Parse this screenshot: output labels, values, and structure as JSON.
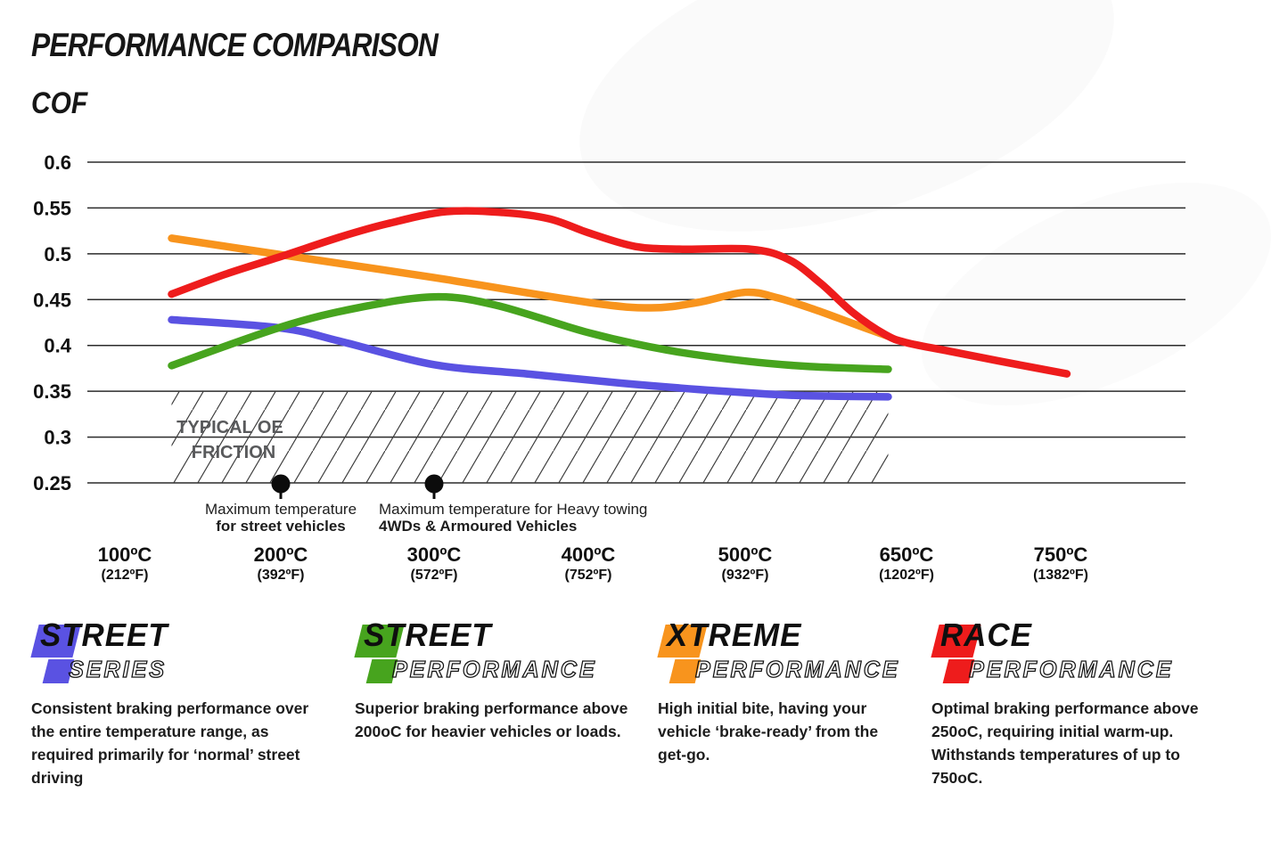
{
  "title": "PERFORMANCE COMPARISON",
  "y_axis_label": "COF",
  "chart_data": {
    "type": "line",
    "title": "PERFORMANCE COMPARISON",
    "ylabel": "COF",
    "ylim": [
      0.25,
      0.6
    ],
    "grid": true,
    "y_ticks": [
      "0.6",
      "0.55",
      "0.5",
      "0.45",
      "0.4",
      "0.35",
      "0.3",
      "0.25"
    ],
    "y_tick_values": [
      0.6,
      0.55,
      0.5,
      0.45,
      0.4,
      0.35,
      0.3,
      0.25
    ],
    "x_ticks": [
      {
        "t": 100,
        "c_label": "100ºC",
        "f_label": "(212ºF)"
      },
      {
        "t": 200,
        "c_label": "200ºC",
        "f_label": "(392ºF)"
      },
      {
        "t": 300,
        "c_label": "300ºC",
        "f_label": "(572ºF)"
      },
      {
        "t": 400,
        "c_label": "400ºC",
        "f_label": "(752ºF)"
      },
      {
        "t": 500,
        "c_label": "500ºC",
        "f_label": "(932ºF)"
      },
      {
        "t": 650,
        "c_label": "650ºC",
        "f_label": "(1202ºF)"
      },
      {
        "t": 750,
        "c_label": "750ºC",
        "f_label": "(1382ºF)"
      }
    ],
    "series": [
      {
        "name": "Street Series",
        "color": "#5a52e2",
        "points": [
          [
            130,
            0.428
          ],
          [
            200,
            0.419
          ],
          [
            240,
            0.404
          ],
          [
            300,
            0.379
          ],
          [
            360,
            0.369
          ],
          [
            420,
            0.359
          ],
          [
            470,
            0.352
          ],
          [
            520,
            0.347
          ],
          [
            560,
            0.345
          ],
          [
            633,
            0.344
          ]
        ]
      },
      {
        "name": "Street Performance",
        "color": "#47a41e",
        "points": [
          [
            130,
            0.378
          ],
          [
            200,
            0.42
          ],
          [
            250,
            0.441
          ],
          [
            300,
            0.453
          ],
          [
            340,
            0.444
          ],
          [
            400,
            0.414
          ],
          [
            450,
            0.395
          ],
          [
            500,
            0.383
          ],
          [
            560,
            0.377
          ],
          [
            633,
            0.374
          ]
        ]
      },
      {
        "name": "Xtreme Performance",
        "color": "#f8941d",
        "points": [
          [
            130,
            0.517
          ],
          [
            200,
            0.499
          ],
          [
            300,
            0.474
          ],
          [
            400,
            0.447
          ],
          [
            440,
            0.441
          ],
          [
            470,
            0.447
          ],
          [
            500,
            0.458
          ],
          [
            530,
            0.452
          ],
          [
            565,
            0.439
          ],
          [
            600,
            0.424
          ],
          [
            633,
            0.41
          ]
        ]
      },
      {
        "name": "Race Performance",
        "color": "#ee1c1c",
        "points": [
          [
            130,
            0.456
          ],
          [
            165,
            0.478
          ],
          [
            200,
            0.497
          ],
          [
            240,
            0.519
          ],
          [
            270,
            0.533
          ],
          [
            308,
            0.546
          ],
          [
            345,
            0.545
          ],
          [
            375,
            0.538
          ],
          [
            400,
            0.523
          ],
          [
            430,
            0.508
          ],
          [
            460,
            0.505
          ],
          [
            505,
            0.505
          ],
          [
            540,
            0.494
          ],
          [
            570,
            0.468
          ],
          [
            600,
            0.436
          ],
          [
            630,
            0.412
          ],
          [
            650,
            0.403
          ],
          [
            680,
            0.393
          ],
          [
            710,
            0.383
          ],
          [
            754,
            0.369
          ]
        ]
      }
    ],
    "oe_zone": {
      "label_line1": "TYPICAL OE",
      "label_line2": "FRICTION",
      "cof_range": [
        0.25,
        0.35
      ],
      "t_range": [
        130,
        633
      ]
    },
    "annotations": [
      {
        "t": 200,
        "align": "center",
        "line1": "Maximum temperature",
        "line2": "for street vehicles"
      },
      {
        "t": 300,
        "align": "left",
        "line1": "Maximum temperature for Heavy towing",
        "line2": "4WDs & Armoured Vehicles"
      }
    ]
  },
  "legend": [
    {
      "word1": "STREET",
      "word2": "SERIES",
      "color": "#5a52e2",
      "description": "Consistent braking performance over the entire temperature range, as required primarily for ‘normal’ street driving"
    },
    {
      "word1": "STREET",
      "word2": "PERFORMANCE",
      "color": "#47a41e",
      "description": "Superior braking performance above 200oC for heavier vehicles or loads."
    },
    {
      "word1": "XTREME",
      "word2": "PERFORMANCE",
      "color": "#f8941d",
      "description": "High initial bite, having your vehicle ‘brake-ready’ from the get-go."
    },
    {
      "word1": "RACE",
      "word2": "PERFORMANCE",
      "color": "#ee1c1c",
      "description": "Optimal braking performance above 250oC, requiring initial warm-up. Withstands temperatures of up to 750oC."
    }
  ]
}
